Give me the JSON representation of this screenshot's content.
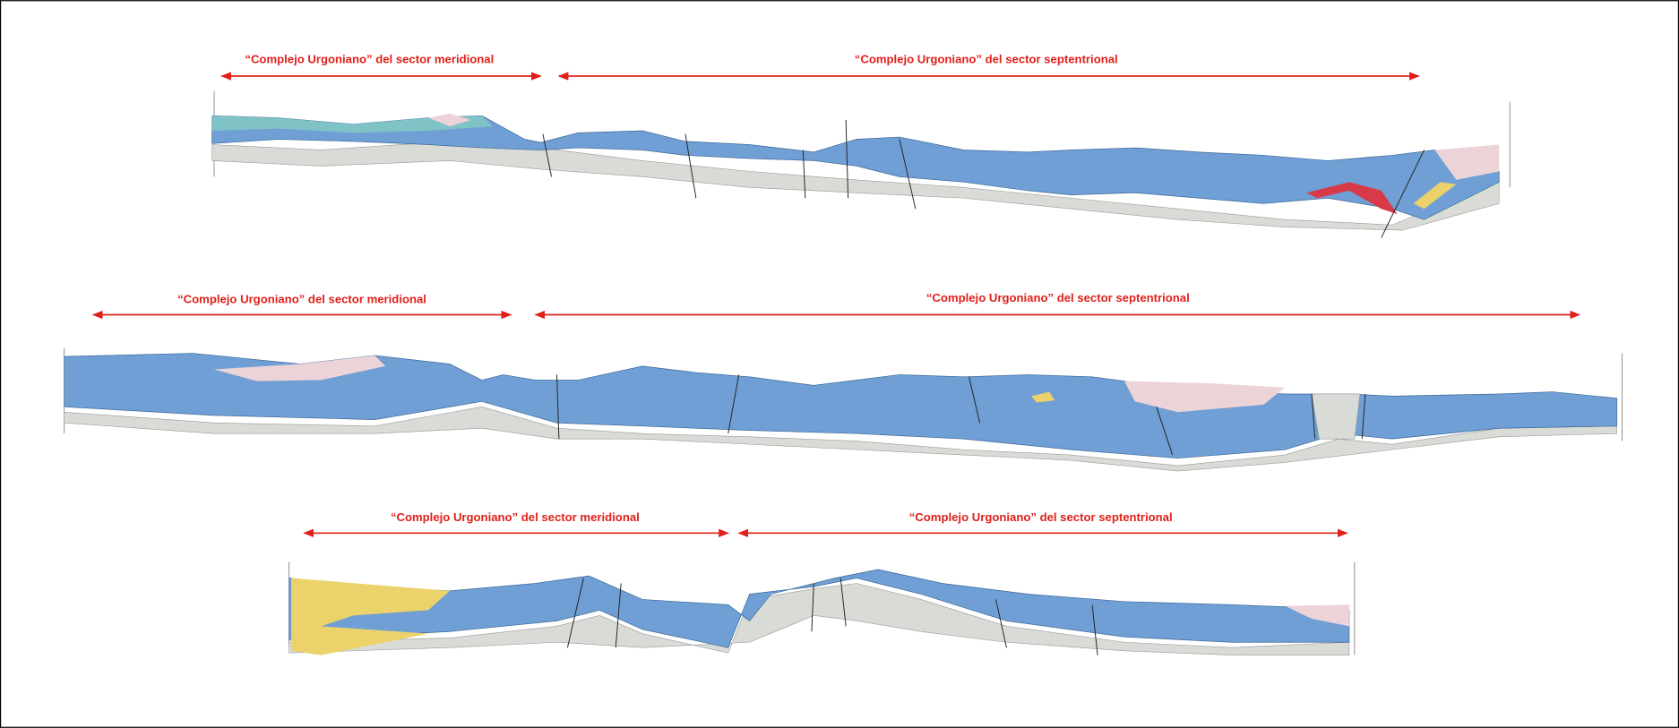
{
  "sections": [
    {
      "south_label": "“Complejo Urgoniano” del sector meridional",
      "north_label": "“Complejo Urgoniano” del sector septentrional"
    },
    {
      "south_label": "“Complejo Urgoniano” del sector meridional",
      "north_label": "“Complejo Urgoniano” del sector septentrional"
    },
    {
      "south_label": "“Complejo Urgoniano” del sector meridional",
      "north_label": "“Complejo Urgoniano” del sector septentrional"
    }
  ]
}
